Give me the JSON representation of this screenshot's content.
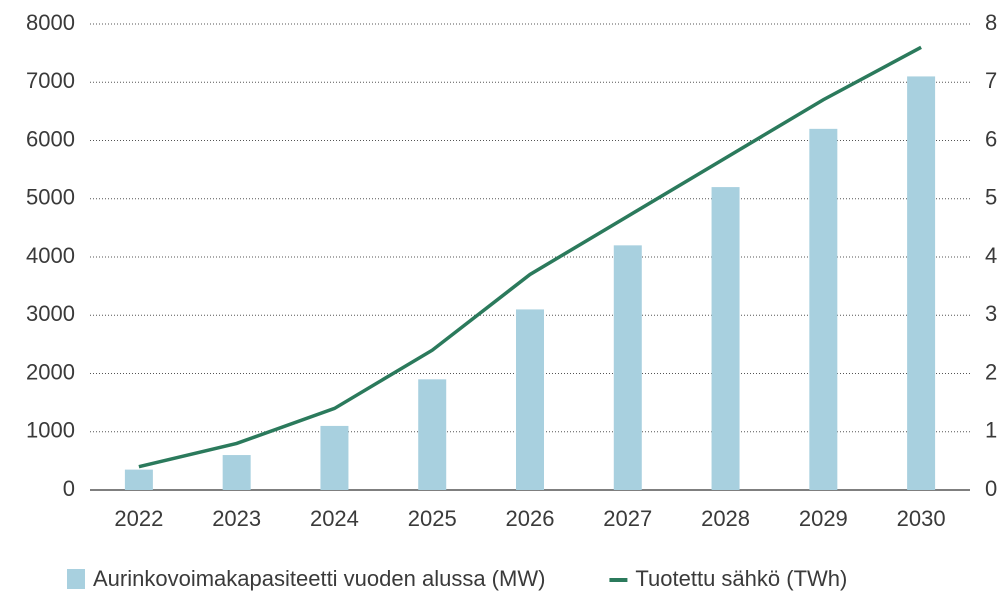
{
  "chart_data": {
    "type": "bar",
    "categories": [
      "2022",
      "2023",
      "2024",
      "2025",
      "2026",
      "2027",
      "2028",
      "2029",
      "2030"
    ],
    "series": [
      {
        "name": "Aurinkovoimakapasiteetti vuoden alussa (MW)",
        "type": "bar",
        "color": "#a8d0df",
        "values": [
          350,
          600,
          1100,
          1900,
          3100,
          4200,
          5200,
          6200,
          7100
        ]
      },
      {
        "name": "Tuotettu sähkö (TWh)",
        "type": "line",
        "axis": "y2",
        "color": "#2b7a5c",
        "values": [
          0.4,
          0.8,
          1.4,
          2.4,
          3.7,
          4.7,
          5.7,
          6.7,
          7.6
        ]
      }
    ],
    "ylim": [
      0,
      8000
    ],
    "yticks": [
      0,
      1000,
      2000,
      3000,
      4000,
      5000,
      6000,
      7000,
      8000
    ],
    "y2lim": [
      0,
      8
    ],
    "y2ticks": [
      0,
      1,
      2,
      3,
      4,
      5,
      6,
      7,
      8
    ],
    "grid": true,
    "legend": "bottom"
  }
}
